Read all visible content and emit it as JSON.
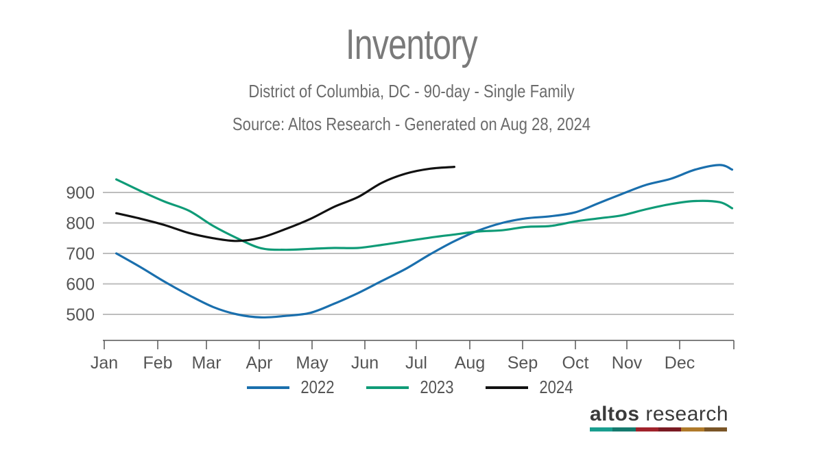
{
  "chart_data": {
    "type": "line",
    "title": "Inventory",
    "subtitle_lines": [
      "District of Columbia, DC - 90-day - Single Family",
      "Source: Altos Research - Generated on Aug 28, 2024"
    ],
    "x_tick_labels": [
      "Jan",
      "Feb",
      "Mar",
      "Apr",
      "May",
      "Jun",
      "Jul",
      "Aug",
      "Sep",
      "Oct",
      "Nov",
      "Dec"
    ],
    "y_tick_values": [
      500,
      600,
      700,
      800,
      900
    ],
    "ylim": [
      380,
      1000
    ],
    "grid": true,
    "legend_position": "bottom-center",
    "series": [
      {
        "name": "2022",
        "color": "#1a6fad",
        "points": [
          [
            "Jan 8",
            700
          ],
          [
            "Jan 22",
            655
          ],
          [
            "Feb 5",
            607
          ],
          [
            "Feb 19",
            563
          ],
          [
            "Mar 5",
            524
          ],
          [
            "Mar 19",
            500
          ],
          [
            "Apr 2",
            490
          ],
          [
            "Apr 16",
            495
          ],
          [
            "Apr 30",
            505
          ],
          [
            "May 14",
            535
          ],
          [
            "May 28",
            570
          ],
          [
            "Jun 11",
            610
          ],
          [
            "Jun 25",
            650
          ],
          [
            "Jul 9",
            697
          ],
          [
            "Jul 23",
            740
          ],
          [
            "Aug 6",
            775
          ],
          [
            "Aug 20",
            800
          ],
          [
            "Sep 3",
            815
          ],
          [
            "Sep 17",
            822
          ],
          [
            "Oct 1",
            835
          ],
          [
            "Oct 15",
            865
          ],
          [
            "Oct 29",
            895
          ],
          [
            "Nov 12",
            925
          ],
          [
            "Nov 26",
            945
          ],
          [
            "Dec 10",
            975
          ],
          [
            "Dec 24",
            990
          ],
          [
            "Dec 31",
            975
          ]
        ]
      },
      {
        "name": "2023",
        "color": "#0f9b77",
        "points": [
          [
            "Jan 8",
            943
          ],
          [
            "Jan 22",
            905
          ],
          [
            "Feb 5",
            870
          ],
          [
            "Feb 19",
            840
          ],
          [
            "Mar 5",
            790
          ],
          [
            "Mar 19",
            750
          ],
          [
            "Apr 2",
            717
          ],
          [
            "Apr 16",
            712
          ],
          [
            "Apr 30",
            715
          ],
          [
            "May 14",
            718
          ],
          [
            "May 28",
            718
          ],
          [
            "Jun 11",
            728
          ],
          [
            "Jun 25",
            740
          ],
          [
            "Jul 9",
            752
          ],
          [
            "Jul 23",
            762
          ],
          [
            "Aug 6",
            772
          ],
          [
            "Aug 20",
            776
          ],
          [
            "Sep 3",
            787
          ],
          [
            "Sep 17",
            790
          ],
          [
            "Oct 1",
            805
          ],
          [
            "Oct 15",
            815
          ],
          [
            "Oct 29",
            825
          ],
          [
            "Nov 12",
            845
          ],
          [
            "Nov 26",
            862
          ],
          [
            "Dec 10",
            872
          ],
          [
            "Dec 24",
            868
          ],
          [
            "Dec 31",
            848
          ]
        ]
      },
      {
        "name": "2024",
        "color": "#111111",
        "points": [
          [
            "Jan 8",
            832
          ],
          [
            "Jan 22",
            814
          ],
          [
            "Feb 5",
            793
          ],
          [
            "Feb 19",
            767
          ],
          [
            "Mar 5",
            750
          ],
          [
            "Mar 19",
            741
          ],
          [
            "Apr 2",
            752
          ],
          [
            "Apr 16",
            780
          ],
          [
            "Apr 30",
            813
          ],
          [
            "May 14",
            853
          ],
          [
            "May 28",
            885
          ],
          [
            "Jun 11",
            932
          ],
          [
            "Jun 25",
            962
          ],
          [
            "Jul 9",
            978
          ],
          [
            "Jul 23",
            984
          ]
        ]
      }
    ]
  },
  "logo": {
    "text_strong": "altos",
    "text_light": " research",
    "bar_colors": [
      "#1a9e8f",
      "#157a6e",
      "#a0222b",
      "#7a1a22",
      "#b07a2a",
      "#7a5526"
    ]
  }
}
